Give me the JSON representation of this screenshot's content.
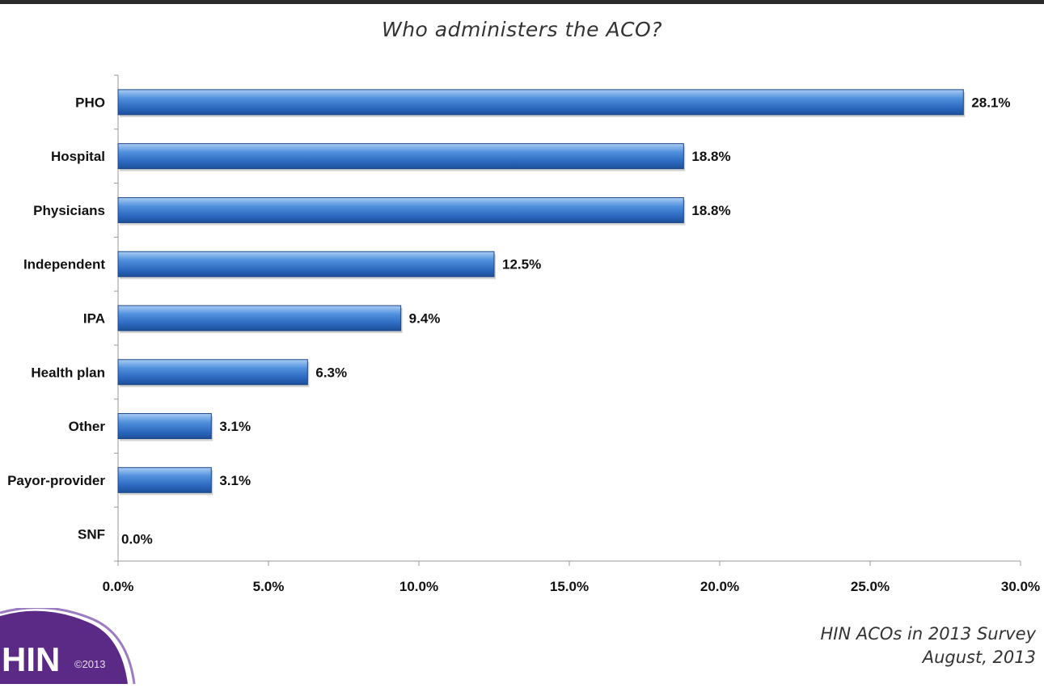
{
  "footer": {
    "line1": "HIN ACOs in 2013 Survey",
    "line2": "August, 2013"
  },
  "logo": {
    "text": "HIN",
    "copyright": "©2013"
  },
  "colors": {
    "bar": "#2f72c9",
    "logo_purple": "#5b2a86"
  },
  "chart_data": {
    "type": "bar",
    "orientation": "horizontal",
    "title": "Who administers the ACO?",
    "categories": [
      "PHO",
      "Hospital",
      "Physicians",
      "Independent",
      "IPA",
      "Health plan",
      "Other",
      "Payor-provider",
      "SNF"
    ],
    "values": [
      28.1,
      18.8,
      18.8,
      12.5,
      9.4,
      6.3,
      3.1,
      3.1,
      0.0
    ],
    "value_labels": [
      "28.1%",
      "18.8%",
      "18.8%",
      "12.5%",
      "9.4%",
      "6.3%",
      "3.1%",
      "3.1%",
      "0.0%"
    ],
    "xlim": [
      0,
      30
    ],
    "ticks": [
      0,
      5,
      10,
      15,
      20,
      25,
      30
    ],
    "tick_labels": [
      "0.0%",
      "5.0%",
      "10.0%",
      "15.0%",
      "20.0%",
      "25.0%",
      "30.0%"
    ],
    "xlabel": "",
    "ylabel": "",
    "grid": false,
    "legend": "none"
  }
}
